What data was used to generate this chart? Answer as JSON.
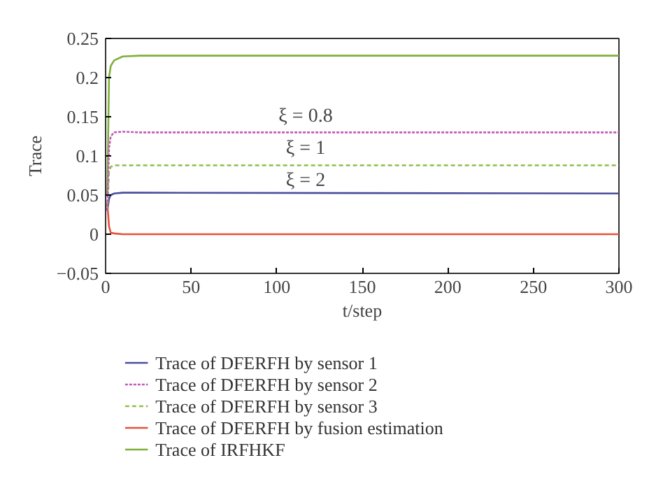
{
  "chart_data": {
    "type": "line",
    "xlabel": "t/step",
    "ylabel": "Trace",
    "x": [
      1,
      2,
      3,
      5,
      10,
      20,
      300
    ],
    "xlim": [
      0,
      300
    ],
    "ylim": [
      -0.05,
      0.25
    ],
    "xticks": [
      0,
      50,
      100,
      150,
      200,
      250,
      300
    ],
    "yticks": [
      {
        "value": -0.05,
        "label": "−0.05"
      },
      0,
      0.05,
      0.1,
      0.15,
      0.2,
      0.25
    ],
    "grid": false,
    "legend": "bottom",
    "series": [
      {
        "name": "Trace of DFERFH by sensor 1",
        "color": "#4a4e9a",
        "line_style": "solid",
        "values": [
          0.03,
          0.045,
          0.05,
          0.052,
          0.053,
          0.053,
          0.052
        ]
      },
      {
        "name": "Trace of DFERFH by sensor 2",
        "color": "#c25ab8",
        "line_style": "dotted",
        "values": [
          0.03,
          0.11,
          0.125,
          0.13,
          0.131,
          0.13,
          0.13
        ]
      },
      {
        "name": "Trace of DFERFH by sensor 3",
        "color": "#8fbf4a",
        "line_style": "dashed",
        "values": [
          0.03,
          0.08,
          0.086,
          0.088,
          0.088,
          0.088,
          0.088
        ]
      },
      {
        "name": "Trace of DFERFH by fusion estimation",
        "color": "#e8503a",
        "line_style": "solid",
        "values": [
          0.04,
          0.01,
          0.002,
          0.001,
          0,
          0,
          0
        ]
      },
      {
        "name": "Trace of IRFHKF",
        "color": "#7fb03a",
        "line_style": "solid",
        "values": [
          0.05,
          0.2,
          0.215,
          0.222,
          0.227,
          0.228,
          0.228
        ]
      }
    ],
    "annotations": [
      "ξ = 0.8",
      "ξ = 1",
      "ξ = 2"
    ]
  }
}
